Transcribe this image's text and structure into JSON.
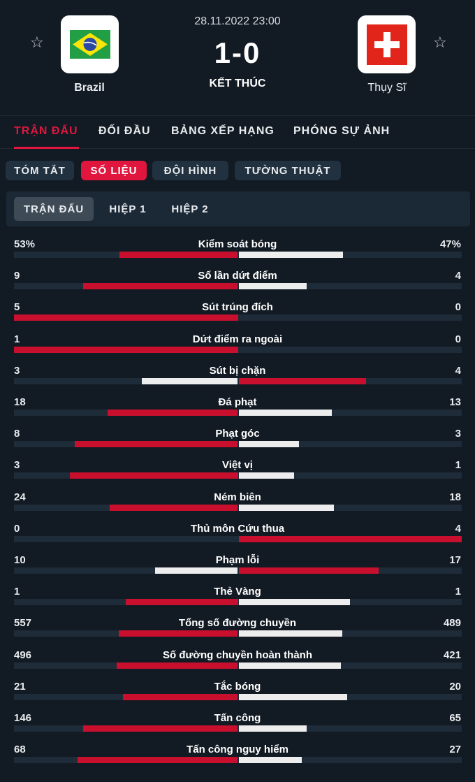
{
  "match": {
    "datetime": "28.11.2022 23:00",
    "score": "1-0",
    "status": "KẾT THÚC",
    "home_team": "Brazil",
    "away_team": "Thụy Sĩ"
  },
  "colors": {
    "accent": "#e0163f",
    "bar_home": "#c8102e",
    "bar_away": "#ededed",
    "background": "#121a23"
  },
  "icons": {
    "favorite": "star-outline-icon",
    "home_logo": "brazil-flag-icon",
    "away_logo": "switzerland-flag-icon"
  },
  "main_tabs": [
    {
      "label": "TRẬN ĐẤU",
      "active": true
    },
    {
      "label": "ĐỐI ĐẦU",
      "active": false
    },
    {
      "label": "BẢNG XẾP HẠNG",
      "active": false
    },
    {
      "label": "PHÓNG SỰ ẢNH",
      "active": false
    }
  ],
  "sub_tabs": [
    {
      "label": "TÓM TẮT",
      "active": false
    },
    {
      "label": "SỐ LIỆU",
      "active": true
    },
    {
      "label": "ĐỘI HÌNH",
      "active": false
    },
    {
      "label": "TƯỜNG THUẬT",
      "active": false
    }
  ],
  "period_tabs": [
    {
      "label": "TRẬN ĐẤU",
      "active": true
    },
    {
      "label": "HIỆP 1",
      "active": false
    },
    {
      "label": "HIỆP 2",
      "active": false
    }
  ],
  "stats": [
    {
      "label": "Kiểm soát bóng",
      "home": "53%",
      "away": "47%",
      "home_value": 53,
      "away_value": 47
    },
    {
      "label": "Số lần dứt điểm",
      "home": "9",
      "away": "4",
      "home_value": 9,
      "away_value": 4
    },
    {
      "label": "Sút trúng đích",
      "home": "5",
      "away": "0",
      "home_value": 5,
      "away_value": 0
    },
    {
      "label": "Dứt điểm ra ngoài",
      "home": "1",
      "away": "0",
      "home_value": 1,
      "away_value": 0
    },
    {
      "label": "Sút bị chặn",
      "home": "3",
      "away": "4",
      "home_value": 3,
      "away_value": 4
    },
    {
      "label": "Đá phạt",
      "home": "18",
      "away": "13",
      "home_value": 18,
      "away_value": 13
    },
    {
      "label": "Phạt góc",
      "home": "8",
      "away": "3",
      "home_value": 8,
      "away_value": 3
    },
    {
      "label": "Việt vị",
      "home": "3",
      "away": "1",
      "home_value": 3,
      "away_value": 1
    },
    {
      "label": "Ném biên",
      "home": "24",
      "away": "18",
      "home_value": 24,
      "away_value": 18
    },
    {
      "label": "Thủ môn Cứu thua",
      "home": "0",
      "away": "4",
      "home_value": 0,
      "away_value": 4
    },
    {
      "label": "Phạm lỗi",
      "home": "10",
      "away": "17",
      "home_value": 10,
      "away_value": 17
    },
    {
      "label": "Thẻ Vàng",
      "home": "1",
      "away": "1",
      "home_value": 1,
      "away_value": 1
    },
    {
      "label": "Tổng số đường chuyền",
      "home": "557",
      "away": "489",
      "home_value": 557,
      "away_value": 489
    },
    {
      "label": "Số đường chuyền hoàn thành",
      "home": "496",
      "away": "421",
      "home_value": 496,
      "away_value": 421
    },
    {
      "label": "Tắc bóng",
      "home": "21",
      "away": "20",
      "home_value": 21,
      "away_value": 20
    },
    {
      "label": "Tấn công",
      "home": "146",
      "away": "65",
      "home_value": 146,
      "away_value": 65
    },
    {
      "label": "Tấn công nguy hiểm",
      "home": "68",
      "away": "27",
      "home_value": 68,
      "away_value": 27
    }
  ]
}
